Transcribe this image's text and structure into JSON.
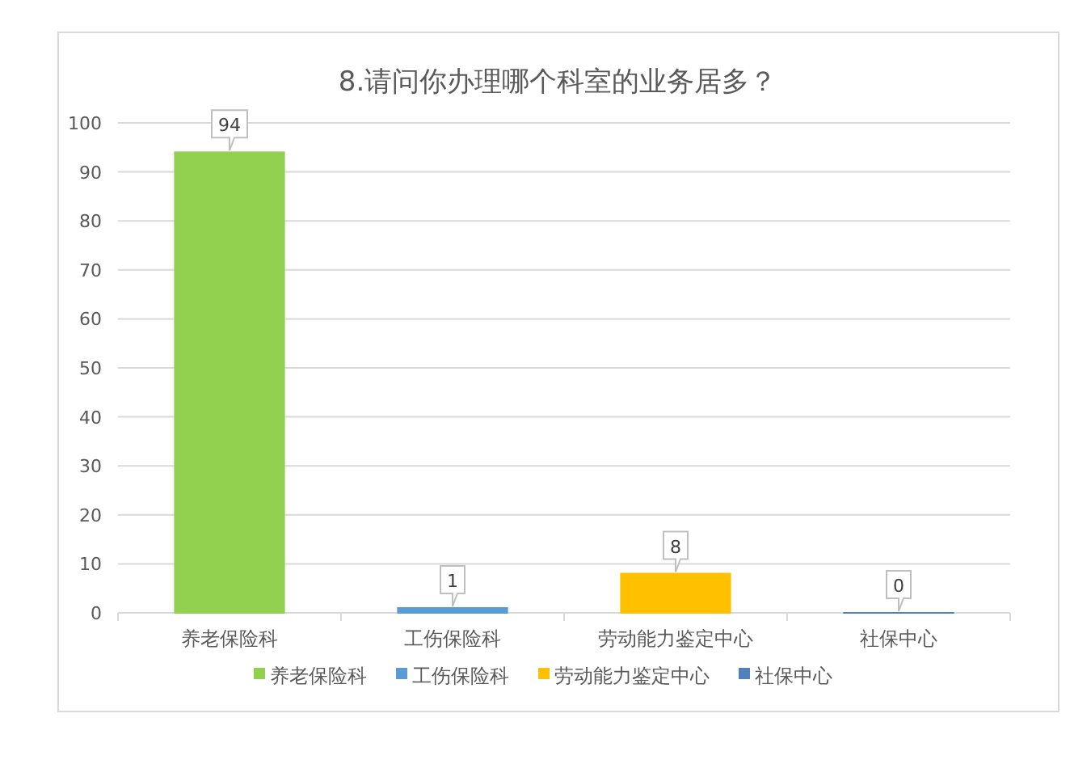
{
  "chart_data": {
    "type": "bar",
    "title": "8.请问你办理哪个科室的业务居多？",
    "categories": [
      "养老保险科",
      "工伤保险科",
      "劳动能力鉴定中心",
      "社保中心"
    ],
    "stacked": true,
    "series": [
      {
        "name": "养老保险科",
        "color": "#92d050",
        "values": [
          94,
          null,
          null,
          null
        ]
      },
      {
        "name": "工伤保险科",
        "color": "#5b9bd5",
        "values": [
          null,
          1,
          null,
          null
        ]
      },
      {
        "name": "劳动能力鉴定中心",
        "color": "#ffc000",
        "values": [
          null,
          null,
          8,
          null
        ]
      },
      {
        "name": "社保中心",
        "color": "#4f81bd",
        "values": [
          null,
          null,
          null,
          0
        ]
      }
    ],
    "ylim": [
      0,
      100
    ],
    "yticks": [
      0,
      10,
      20,
      30,
      40,
      50,
      60,
      70,
      80,
      90,
      100
    ],
    "grid": "y",
    "legend": "bottom",
    "data_labels": true
  }
}
